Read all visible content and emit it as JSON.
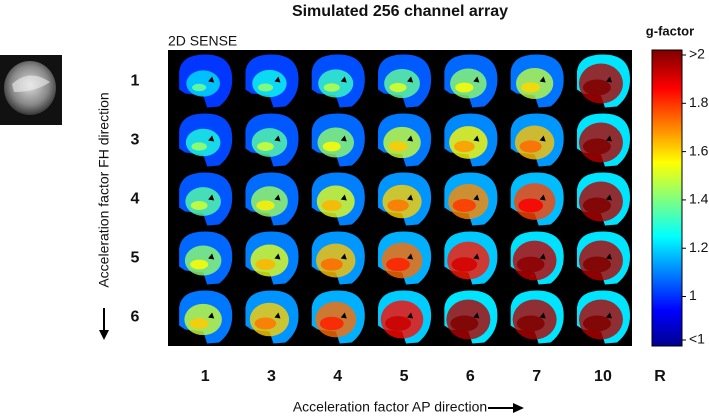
{
  "figure": {
    "title": "Simulated 256 channel array",
    "panel_label": "2D SENSE",
    "row_labels": [
      "1",
      "3",
      "4",
      "5",
      "6"
    ],
    "column_labels": [
      "1",
      "3",
      "4",
      "5",
      "6",
      "7",
      "10"
    ],
    "column_axis_unit": "R",
    "row_axis_label": "Acceleration factor FH direction",
    "column_axis_label": "Acceleration factor AP direction",
    "colorbar": {
      "title": "g-factor",
      "lim": [
        0.82,
        2.0
      ],
      "ticks": [
        {
          "value": 2.0,
          "label": ">2"
        },
        1.8,
        1.6,
        1.4,
        1.2,
        1,
        {
          "value": 0.82,
          "label": "<1"
        }
      ]
    }
  }
}
